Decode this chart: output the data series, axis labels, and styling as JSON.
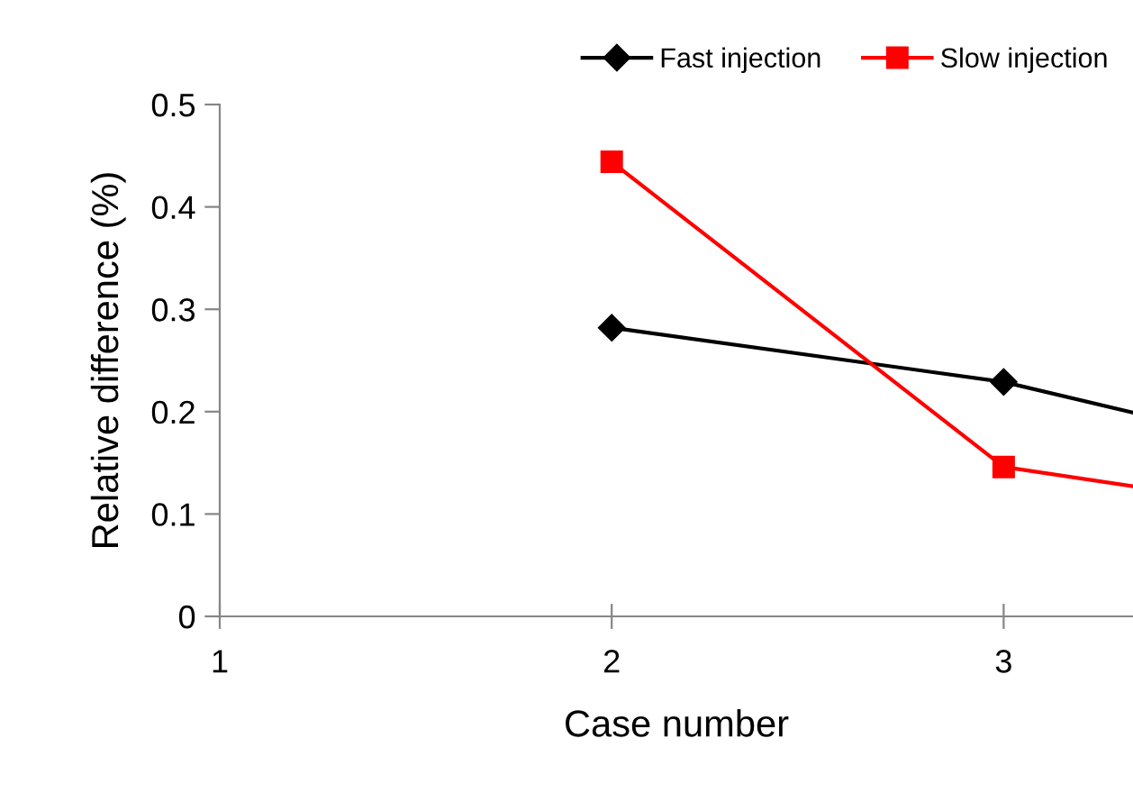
{
  "chart_data": {
    "type": "line",
    "xlabel": "Case number",
    "ylabel": "Relative difference (%)",
    "series": [
      {
        "name": "Fast injection",
        "color": "#000000",
        "marker": "diamond",
        "x": [
          2,
          3,
          3.33
        ],
        "values": [
          0.282,
          0.229,
          0.199
        ]
      },
      {
        "name": "Slow injection",
        "color": "#ff0000",
        "marker": "square",
        "x": [
          2,
          3,
          3.33
        ],
        "values": [
          0.444,
          0.146,
          0.127
        ]
      }
    ],
    "xlim": [
      1,
      3.33
    ],
    "xticks": [
      1,
      2,
      3
    ],
    "ylim": [
      0,
      0.5
    ],
    "yticks": [
      0,
      0.1,
      0.2,
      0.3,
      0.4,
      0.5
    ],
    "grid": false,
    "legend": "top right",
    "line_style": "solid"
  }
}
